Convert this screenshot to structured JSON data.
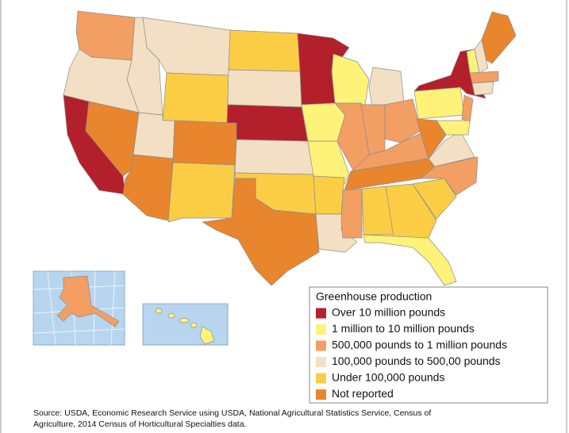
{
  "legend": {
    "title": "Greenhouse production",
    "items": [
      {
        "label": "Over 10 million pounds",
        "color": "#b41f2c"
      },
      {
        "label": "1 million to 10 million pounds",
        "color": "#fff279"
      },
      {
        "label": "500,000 pounds to 1 million pounds",
        "color": "#f39e63"
      },
      {
        "label": "100,000 pounds to 500,00 pounds",
        "color": "#f3e0c4"
      },
      {
        "label": "Under 100,000 pounds",
        "color": "#fbcd44"
      },
      {
        "label": "Not reported",
        "color": "#e9852d"
      }
    ]
  },
  "source": [
    "Source: USDA, Economic Research Service using USDA, National Agricultural Statistics Service, Census of",
    "Agriculture, 2014 Census of Horticultural Specialties data."
  ]
}
